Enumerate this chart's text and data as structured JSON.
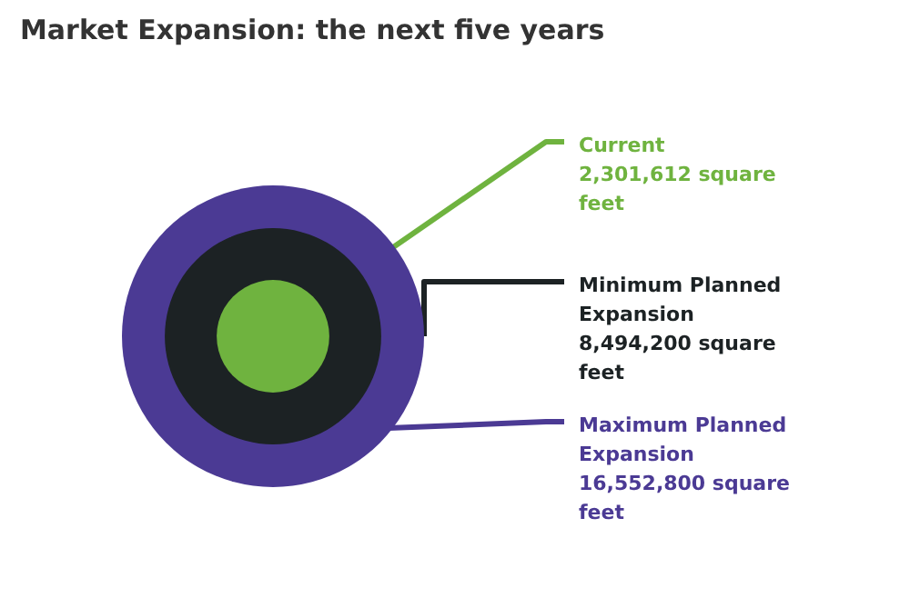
{
  "chart_data": {
    "type": "other",
    "title": "Market Expansion: the next five years",
    "categories": [
      "Current",
      "Minimum Planned Expansion",
      "Maximum Planned Expansion"
    ],
    "values": [
      2301612,
      8494200,
      16552800
    ],
    "colors": [
      "#6fb33f",
      "#1c2224",
      "#4b3a94"
    ],
    "value_labels": [
      "2,301,612 square feet",
      "8,494,200 square feet",
      "16,552,800 square feet"
    ]
  }
}
